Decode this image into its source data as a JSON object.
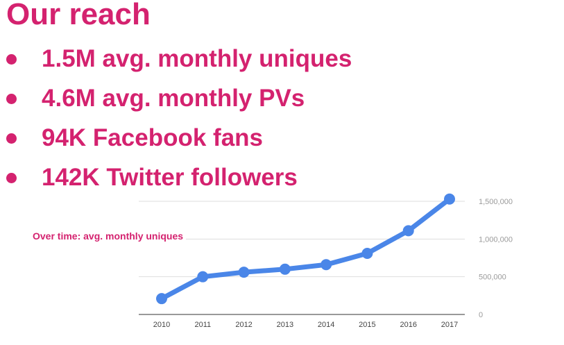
{
  "slide": {
    "title": "Our reach",
    "bullets": [
      "1.5M avg. monthly uniques",
      "4.6M avg. monthly PVs",
      "94K Facebook fans",
      "142K Twitter followers"
    ],
    "chart_caption": "Over time: avg. monthly uniques"
  },
  "colors": {
    "accent": "#d4226f",
    "series_line": "#4a86e8",
    "gridline": "#dddddd"
  },
  "chart_data": {
    "type": "line",
    "title": "",
    "xlabel": "",
    "ylabel": "",
    "categories": [
      "2010",
      "2011",
      "2012",
      "2013",
      "2014",
      "2015",
      "2016",
      "2017"
    ],
    "series": [
      {
        "values": [
          210000,
          500000,
          560000,
          600000,
          660000,
          810000,
          1110000,
          1530000
        ]
      }
    ],
    "ylim": [
      0,
      1500000
    ],
    "yticks": [
      0,
      500000,
      1000000,
      1500000
    ],
    "ytick_labels": [
      "0",
      "500,000",
      "1,000,000",
      "1,500,000"
    ],
    "y_axis_side": "right",
    "grid": true,
    "legend": "none"
  }
}
